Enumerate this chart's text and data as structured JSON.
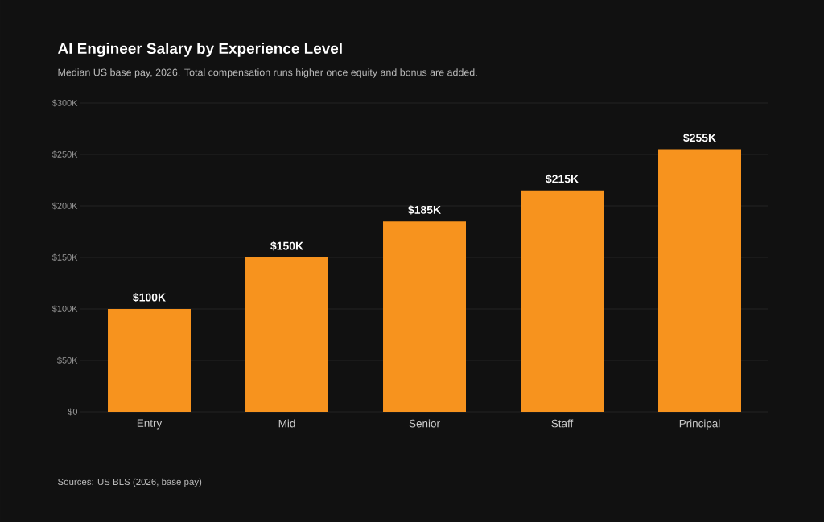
{
  "chart_data": {
    "type": "bar",
    "title": "AI Engineer Salary by Experience Level",
    "subtitle": "Median US base pay, 2026. Total compensation runs higher once equity and bonus are added.",
    "categories": [
      "Entry",
      "Mid",
      "Senior",
      "Staff",
      "Principal"
    ],
    "values": [
      100,
      150,
      185,
      215,
      255
    ],
    "value_labels": [
      "$100K",
      "$150K",
      "$185K",
      "$215K",
      "$255K"
    ],
    "color": "#f7931e",
    "ylim": [
      0,
      300
    ],
    "yticks": [
      {
        "value": 0,
        "label": "$0"
      },
      {
        "value": 50,
        "label": "$50K"
      },
      {
        "value": 100,
        "label": "$100K"
      },
      {
        "value": 150,
        "label": "$150K"
      },
      {
        "value": 200,
        "label": "$200K"
      },
      {
        "value": 250,
        "label": "$250K"
      },
      {
        "value": 300,
        "label": "$300K"
      }
    ],
    "grid": "y",
    "annotations": [
      "Sources: US BLS (2026, base pay)"
    ]
  }
}
